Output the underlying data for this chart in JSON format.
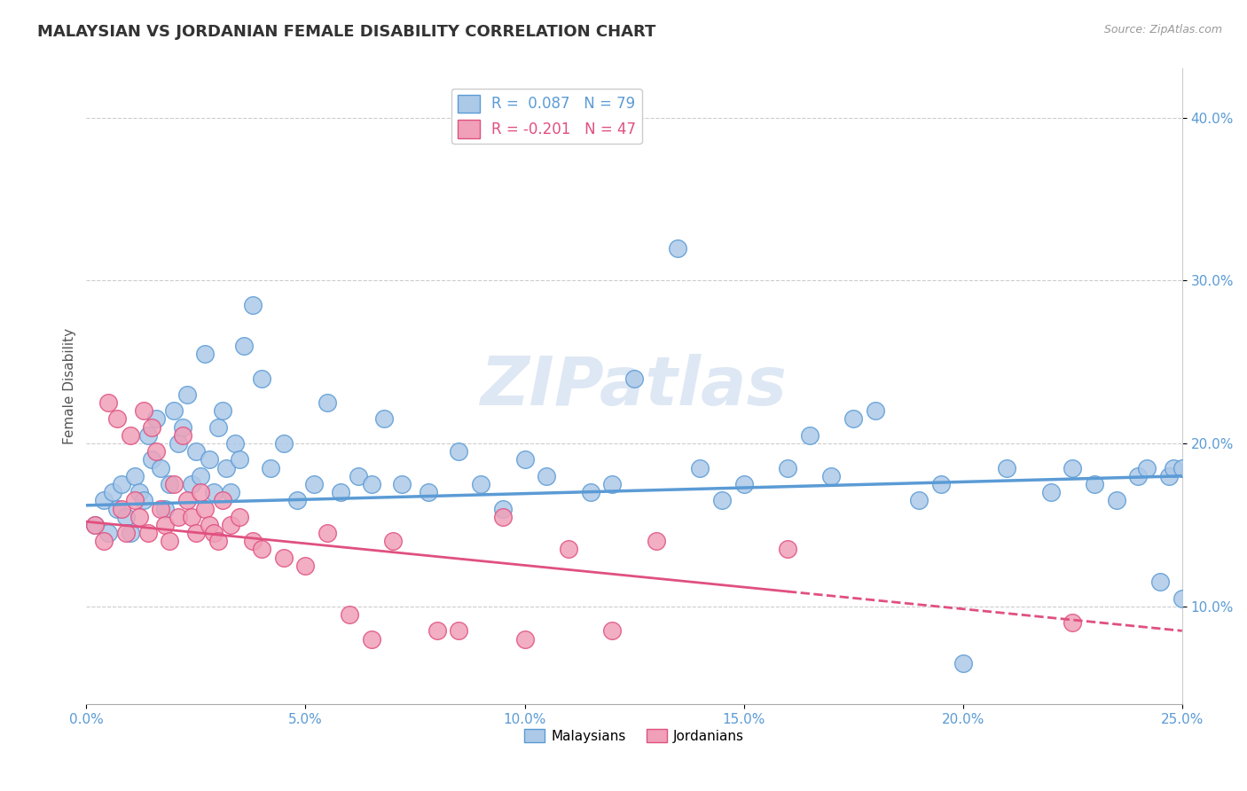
{
  "title": "MALAYSIAN VS JORDANIAN FEMALE DISABILITY CORRELATION CHART",
  "source": "Source: ZipAtlas.com",
  "xlabel_vals": [
    0.0,
    5.0,
    10.0,
    15.0,
    20.0,
    25.0
  ],
  "ylabel_vals": [
    10.0,
    20.0,
    30.0,
    40.0
  ],
  "xlim": [
    0.0,
    25.0
  ],
  "ylim": [
    4.0,
    43.0
  ],
  "watermark": "ZIPatlas",
  "legend1_blue_label": "R =  0.087   N = 79",
  "legend1_pink_label": "R = -0.201   N = 47",
  "legend2_blue_label": "Malaysians",
  "legend2_pink_label": "Jordanians",
  "malaysian_color": "#5b9bd5",
  "jordanian_color": "#e05080",
  "malaysian_fill": "#adc9e8",
  "jordanian_fill": "#f0a0b8",
  "malaysian_x": [
    0.2,
    0.4,
    0.5,
    0.6,
    0.7,
    0.8,
    0.9,
    1.0,
    1.1,
    1.2,
    1.3,
    1.4,
    1.5,
    1.6,
    1.7,
    1.8,
    1.9,
    2.0,
    2.1,
    2.2,
    2.3,
    2.4,
    2.5,
    2.6,
    2.7,
    2.8,
    2.9,
    3.0,
    3.1,
    3.2,
    3.3,
    3.4,
    3.5,
    3.6,
    3.8,
    4.0,
    4.2,
    4.5,
    4.8,
    5.2,
    5.5,
    5.8,
    6.2,
    6.5,
    6.8,
    7.2,
    7.8,
    8.5,
    9.0,
    9.5,
    10.0,
    10.5,
    11.5,
    12.0,
    12.5,
    13.5,
    14.0,
    14.5,
    15.0,
    16.0,
    16.5,
    17.0,
    17.5,
    18.0,
    19.0,
    19.5,
    20.0,
    21.0,
    22.0,
    22.5,
    23.0,
    23.5,
    24.0,
    24.2,
    24.5,
    24.7,
    24.8,
    25.0,
    25.0
  ],
  "malaysian_y": [
    15.0,
    16.5,
    14.5,
    17.0,
    16.0,
    17.5,
    15.5,
    14.5,
    18.0,
    17.0,
    16.5,
    20.5,
    19.0,
    21.5,
    18.5,
    16.0,
    17.5,
    22.0,
    20.0,
    21.0,
    23.0,
    17.5,
    19.5,
    18.0,
    25.5,
    19.0,
    17.0,
    21.0,
    22.0,
    18.5,
    17.0,
    20.0,
    19.0,
    26.0,
    28.5,
    24.0,
    18.5,
    20.0,
    16.5,
    17.5,
    22.5,
    17.0,
    18.0,
    17.5,
    21.5,
    17.5,
    17.0,
    19.5,
    17.5,
    16.0,
    19.0,
    18.0,
    17.0,
    17.5,
    24.0,
    32.0,
    18.5,
    16.5,
    17.5,
    18.5,
    20.5,
    18.0,
    21.5,
    22.0,
    16.5,
    17.5,
    6.5,
    18.5,
    17.0,
    18.5,
    17.5,
    16.5,
    18.0,
    18.5,
    11.5,
    18.0,
    18.5,
    10.5,
    18.5
  ],
  "jordanian_x": [
    0.2,
    0.4,
    0.5,
    0.7,
    0.8,
    0.9,
    1.0,
    1.1,
    1.2,
    1.3,
    1.4,
    1.5,
    1.6,
    1.7,
    1.8,
    1.9,
    2.0,
    2.1,
    2.2,
    2.3,
    2.4,
    2.5,
    2.6,
    2.7,
    2.8,
    2.9,
    3.0,
    3.1,
    3.3,
    3.5,
    3.8,
    4.0,
    4.5,
    5.0,
    5.5,
    6.0,
    6.5,
    7.0,
    8.0,
    8.5,
    9.5,
    10.0,
    11.0,
    12.0,
    13.0,
    16.0,
    22.5
  ],
  "jordanian_y": [
    15.0,
    14.0,
    22.5,
    21.5,
    16.0,
    14.5,
    20.5,
    16.5,
    15.5,
    22.0,
    14.5,
    21.0,
    19.5,
    16.0,
    15.0,
    14.0,
    17.5,
    15.5,
    20.5,
    16.5,
    15.5,
    14.5,
    17.0,
    16.0,
    15.0,
    14.5,
    14.0,
    16.5,
    15.0,
    15.5,
    14.0,
    13.5,
    13.0,
    12.5,
    14.5,
    9.5,
    8.0,
    14.0,
    8.5,
    8.5,
    15.5,
    8.0,
    13.5,
    8.5,
    14.0,
    13.5,
    9.0
  ],
  "blue_trend_x0": 0.0,
  "blue_trend_y0": 16.2,
  "blue_trend_x1": 25.0,
  "blue_trend_y1": 18.0,
  "pink_trend_x0": 0.0,
  "pink_trend_y0": 15.2,
  "pink_trend_x1": 25.0,
  "pink_trend_y1": 8.5,
  "pink_solid_end": 16.0,
  "pink_dashed_start": 16.0
}
